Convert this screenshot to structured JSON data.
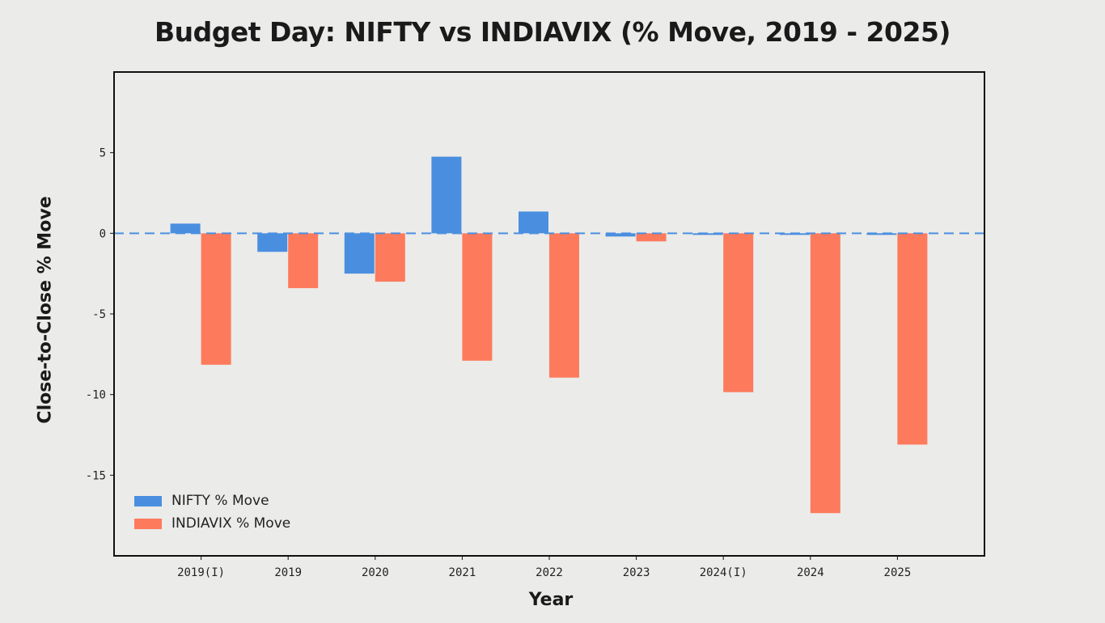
{
  "chart_data": {
    "type": "bar",
    "title": "Budget Day: NIFTY vs INDIAVIX (% Move, 2019 - 2025)",
    "xlabel": "Year",
    "ylabel": "Close-to-Close % Move",
    "categories": [
      "2019(I)",
      "2019",
      "2020",
      "2021",
      "2022",
      "2023",
      "2024(I)",
      "2024",
      "2025"
    ],
    "series": [
      {
        "name": "NIFTY % Move",
        "color": "#4a8fdf",
        "values": [
          0.6,
          -1.15,
          -2.5,
          4.75,
          1.35,
          -0.2,
          -0.1,
          -0.1,
          -0.1
        ]
      },
      {
        "name": "INDIAVIX % Move",
        "color": "#fd7a5c",
        "values": [
          -8.15,
          -3.4,
          -3.0,
          -7.9,
          -8.95,
          -0.5,
          -9.85,
          -17.35,
          -13.1
        ]
      }
    ],
    "ylim": [
      -20,
      10
    ],
    "yticks": [
      5,
      0,
      -5,
      -10,
      -15
    ],
    "zero_line": "dashed",
    "grid": false,
    "legend": "bottom-left"
  }
}
